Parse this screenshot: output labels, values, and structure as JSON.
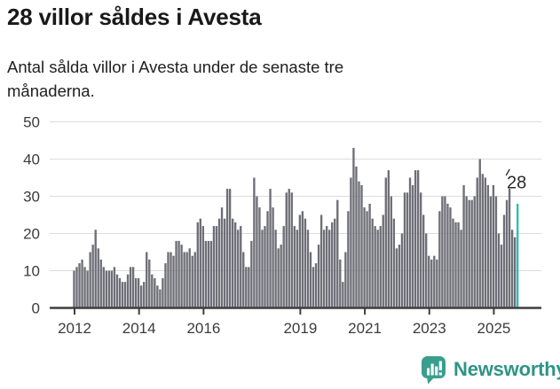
{
  "page": {
    "title": "28 villor såldes i Avesta",
    "subtitle": "Antal sålda villor i Avesta under de senaste tre månaderna.",
    "subtitle_lines": [
      "Antal sålda villor i Avesta under de senaste tre",
      "månaderna."
    ],
    "background_color": "#ffffff"
  },
  "branding": {
    "logo_text": "Newsworthy",
    "logo_color": "#2e9487",
    "logo_icon": "newsworthy-speech-bubble-bar-chart-icon"
  },
  "chart_data": {
    "type": "bar",
    "title": "28 villor såldes i Avesta",
    "subtitle": "Antal sålda villor i Avesta under de senaste tre månaderna.",
    "frequency": "monthly",
    "x_start": "2012-01",
    "x_end": "2025-10",
    "xticks": [
      2012,
      2014,
      2016,
      2019,
      2021,
      2023,
      2025
    ],
    "yticks": [
      0,
      10,
      20,
      30,
      40,
      50
    ],
    "ylim": [
      0,
      50
    ],
    "grid": true,
    "legend": "none",
    "bar_color": "#6e6e77",
    "highlight_color": "#2fbdb3",
    "highlight_last_bar": true,
    "annotation": {
      "text": "28",
      "value": 28,
      "target": "last-bar"
    },
    "series": [
      {
        "year": 2012,
        "values": [
          10,
          11,
          12,
          13,
          11,
          10,
          15,
          17,
          21,
          16,
          13,
          11
        ]
      },
      {
        "year": 2013,
        "values": [
          10,
          10,
          10,
          11,
          9,
          8,
          7,
          7,
          9,
          11,
          11,
          8
        ]
      },
      {
        "year": 2014,
        "values": [
          8,
          6,
          7,
          15,
          13,
          9,
          8,
          6,
          5,
          8,
          12,
          15
        ]
      },
      {
        "year": 2015,
        "values": [
          15,
          14,
          18,
          18,
          17,
          15,
          15,
          16,
          14,
          15,
          23,
          24
        ]
      },
      {
        "year": 2016,
        "values": [
          22,
          18,
          18,
          18,
          22,
          22,
          24,
          27,
          24,
          32,
          32,
          24
        ]
      },
      {
        "year": 2017,
        "values": [
          23,
          21,
          22,
          15,
          11,
          11,
          18,
          35,
          30,
          27,
          21,
          22
        ]
      },
      {
        "year": 2018,
        "values": [
          26,
          32,
          27,
          21,
          16,
          17,
          22,
          31,
          32,
          31,
          22,
          21
        ]
      },
      {
        "year": 2019,
        "values": [
          25,
          26,
          24,
          21,
          15,
          11,
          12,
          17,
          25,
          21,
          22,
          21
        ]
      },
      {
        "year": 2020,
        "values": [
          23,
          24,
          29,
          13,
          7,
          15,
          26,
          35,
          43,
          38,
          34,
          33
        ]
      },
      {
        "year": 2021,
        "values": [
          27,
          26,
          28,
          24,
          22,
          21,
          22,
          25,
          35,
          37,
          30,
          24
        ]
      },
      {
        "year": 2022,
        "values": [
          16,
          17,
          20,
          31,
          31,
          35,
          33,
          37,
          37,
          31,
          25,
          20
        ]
      },
      {
        "year": 2023,
        "values": [
          14,
          13,
          14,
          13,
          26,
          30,
          30,
          28,
          27,
          24,
          23,
          23
        ]
      },
      {
        "year": 2024,
        "values": [
          21,
          33,
          30,
          29,
          29,
          30,
          35,
          40,
          36,
          35,
          33,
          30
        ]
      },
      {
        "year": 2025,
        "values": [
          33,
          30,
          20,
          17,
          25,
          29,
          32,
          21,
          19,
          28
        ]
      }
    ]
  }
}
